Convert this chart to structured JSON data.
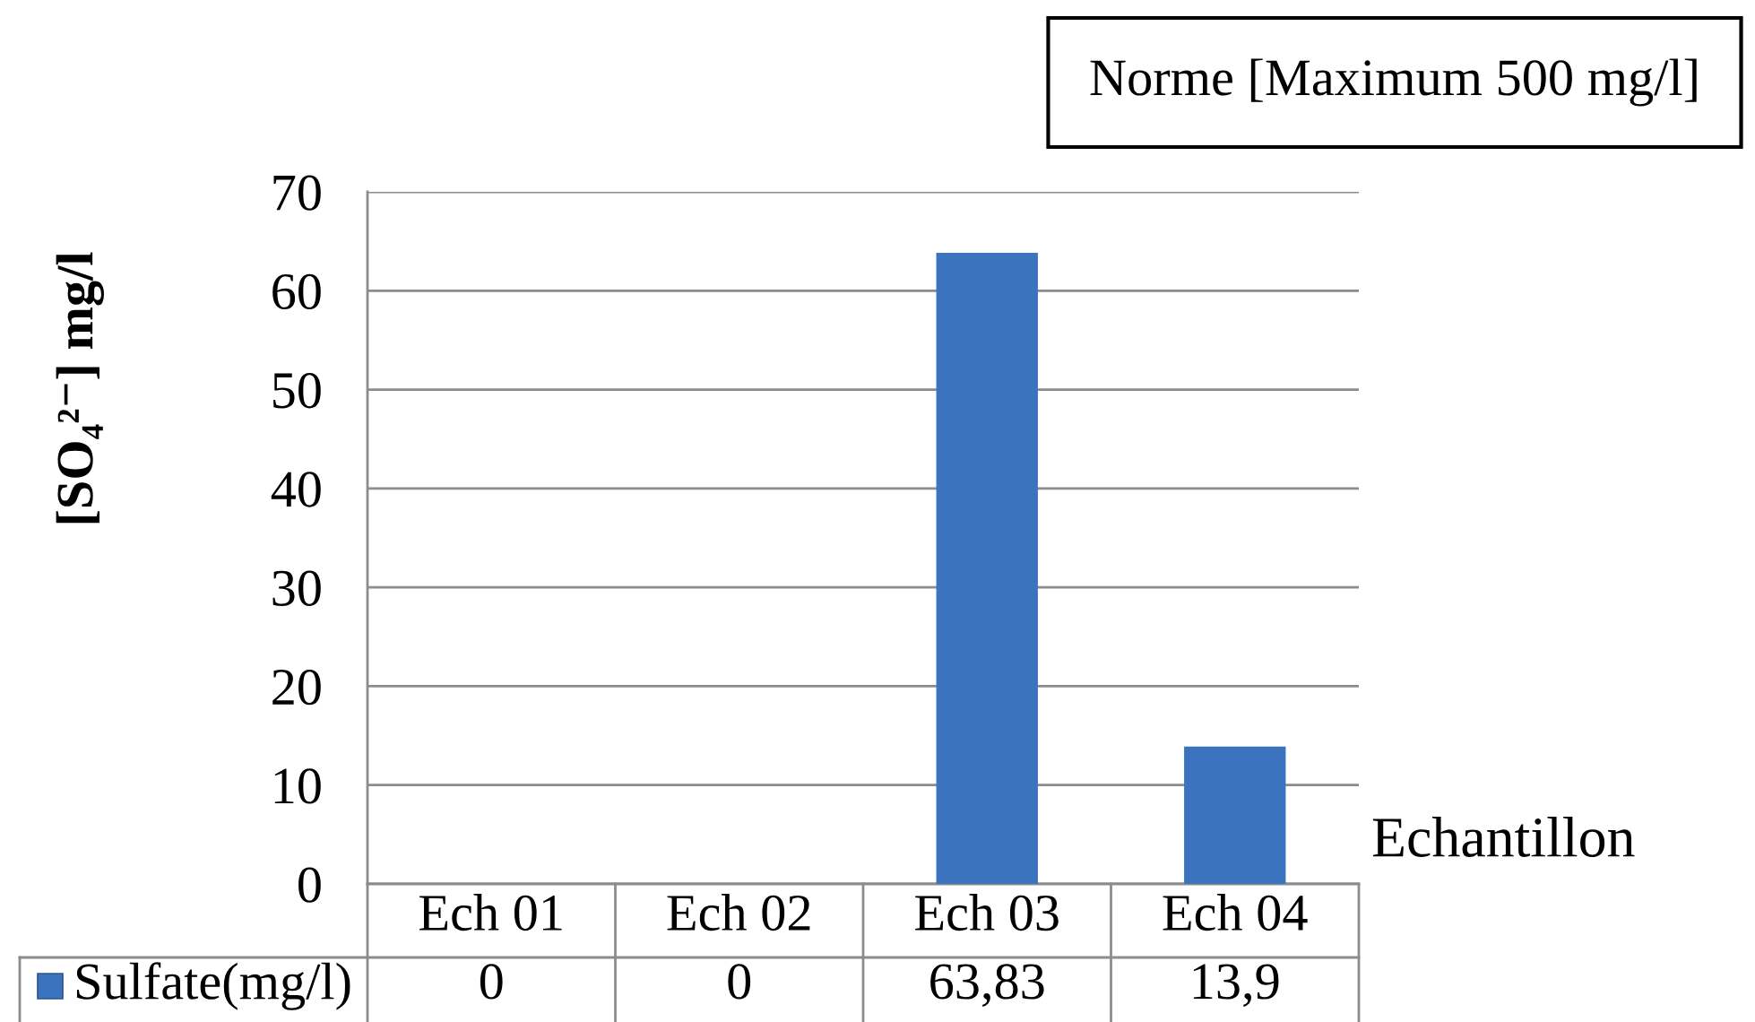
{
  "chart_data": {
    "type": "bar",
    "categories": [
      "Ech 01",
      "Ech 02",
      "Ech 03",
      "Ech 04"
    ],
    "series": [
      {
        "name": "Sulfate(mg/l)",
        "color": "#3c73bf",
        "values": [
          0,
          0,
          63.83,
          13.9
        ],
        "value_labels": [
          "0",
          "0",
          "63,83",
          "13,9"
        ]
      }
    ],
    "xlabel": "Echantillon",
    "ylabel": "[SO₄²⁻] mg/l",
    "annotations": [
      "Norme [Maximum 500 mg/l]"
    ],
    "ylim": [
      0,
      70
    ],
    "yticks": [
      0,
      10,
      20,
      30,
      40,
      50,
      60,
      70
    ],
    "grid": "y",
    "legend": "bottom left"
  }
}
